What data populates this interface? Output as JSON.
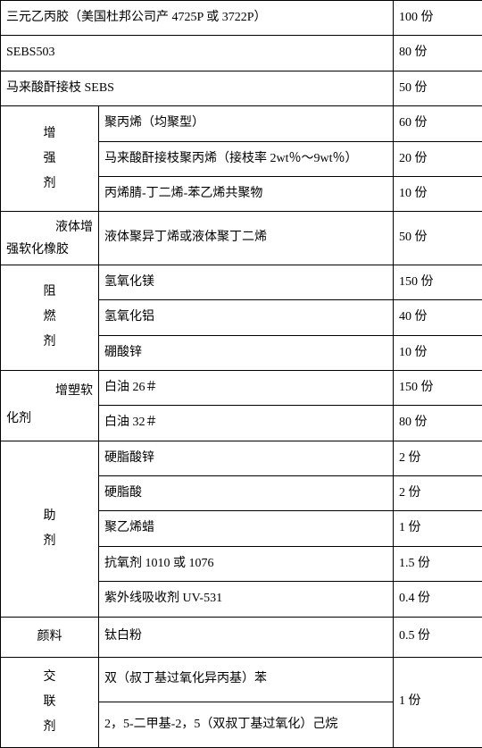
{
  "rows": {
    "r1_name": "三元乙丙胶（美国杜邦公司产 4725P 或 3722P）",
    "r1_amt": "100 份",
    "r2_name": "SEBS503",
    "r2_amt": "80 份",
    "r3_name": "马来酸酐接枝 SEBS",
    "r3_amt": "50 份",
    "enh": {
      "char1": "增",
      "char2": "强",
      "char3": "剂"
    },
    "r4_name": "聚丙烯（均聚型）",
    "r4_amt": "60 份",
    "r5_name": "马来酸酐接枝聚丙烯（接枝率 2wt％～9wt％）",
    "r5_amt": "20 份",
    "r6_name": "丙烯腈-丁二烯-苯乙烯共聚物",
    "r6_amt": "10 份",
    "liq_a": "液体增",
    "liq_b": "强软化橡胶",
    "r7_name": "液体聚异丁烯或液体聚丁二烯",
    "r7_amt": "50 份",
    "flame": {
      "char1": "阻",
      "char2": "燃",
      "char3": "剂"
    },
    "r8_name": "氢氧化镁",
    "r8_amt": "150 份",
    "r9_name": "氢氧化铝",
    "r9_amt": "40 份",
    "r10_name": "硼酸锌",
    "r10_amt": "10 份",
    "plas_a": "增塑软",
    "plas_b": "化剂",
    "r11_name": "白油 26＃",
    "r11_amt": "150 份",
    "r12_name": "白油 32＃",
    "r12_amt": "80 份",
    "aux": {
      "char1": "助",
      "char2": "剂"
    },
    "r13_name": "硬脂酸锌",
    "r13_amt": "2 份",
    "r14_name": "硬脂酸",
    "r14_amt": "2 份",
    "r15_name": "聚乙烯蜡",
    "r15_amt": "1 份",
    "r16_name": "抗氧剂 1010 或 1076",
    "r16_amt": "1.5 份",
    "r17_name": "紫外线吸收剂 UV-531",
    "r17_amt": "0.4 份",
    "pig": "颜料",
    "r18_name": "钛白粉",
    "r18_amt": "0.5 份",
    "cross": {
      "char1": "交",
      "char2": "联",
      "char3": "剂"
    },
    "r19_name": "双（叔丁基过氧化异丙基）苯",
    "r20_name": "2，5-二甲基-2，5（双叔丁基过氧化）己烷",
    "r20_amt": "1 份"
  }
}
